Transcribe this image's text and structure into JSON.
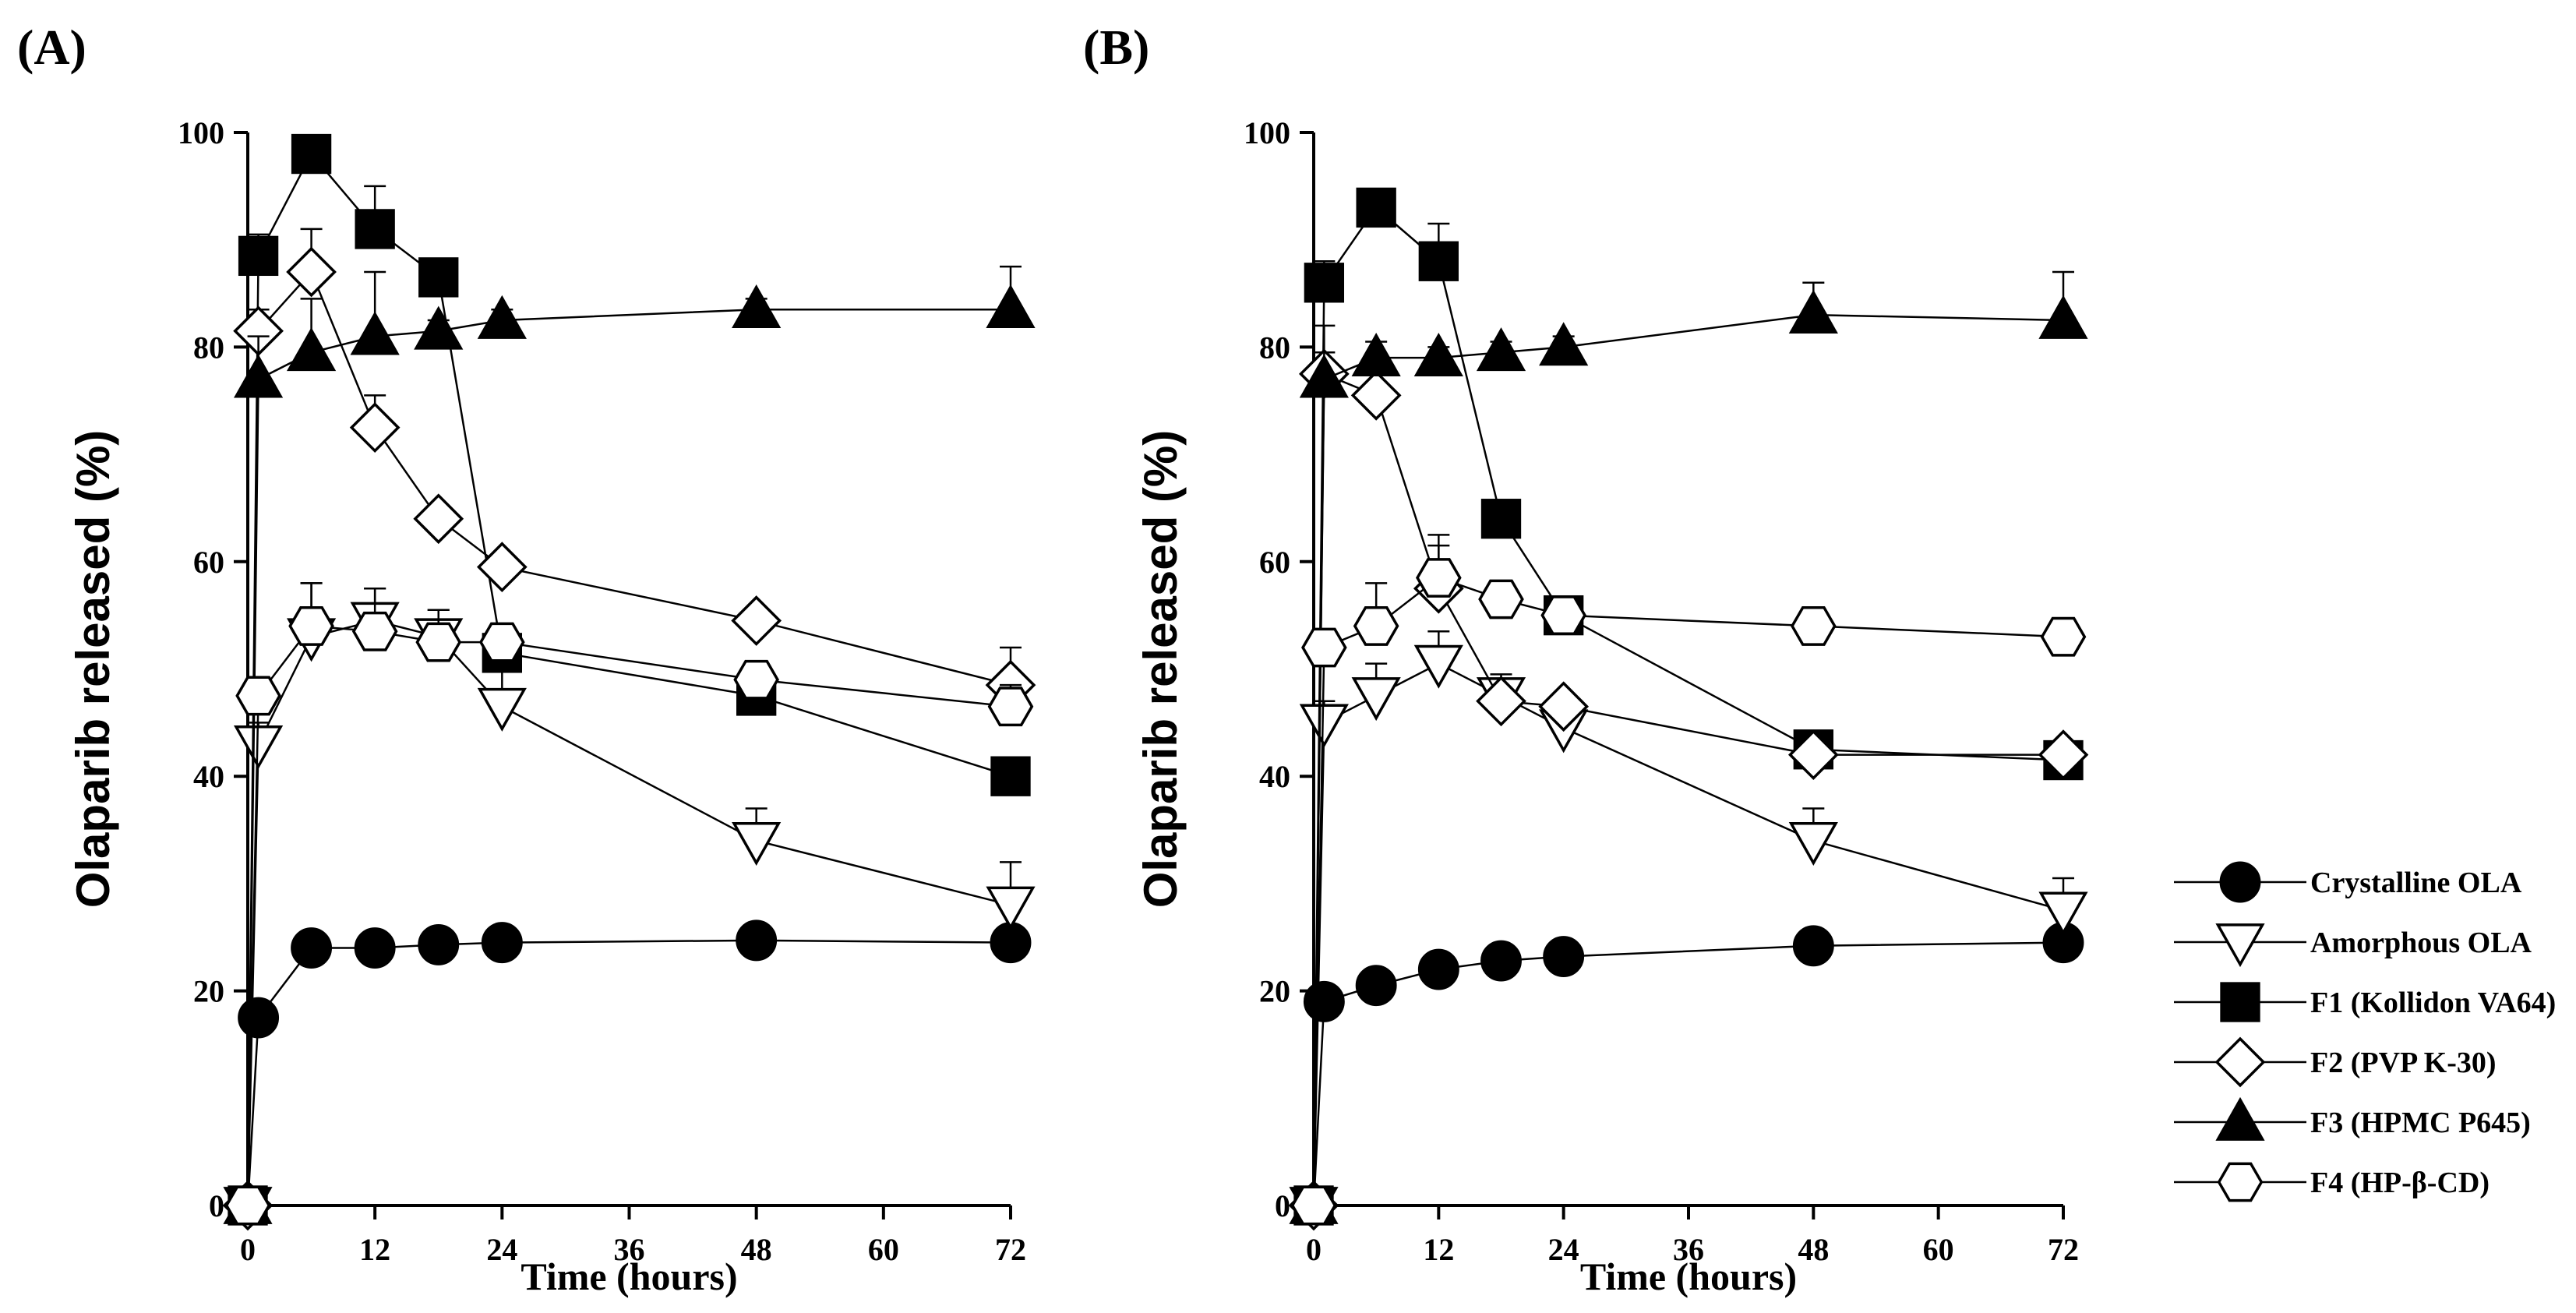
{
  "chart_data": [
    {
      "panel": "(A)",
      "type": "line",
      "xlabel": "Time (hours)",
      "ylabel": "Olaparib released (%)",
      "xlim": [
        0,
        72
      ],
      "ylim": [
        0,
        100
      ],
      "xticks": [
        0,
        12,
        24,
        36,
        48,
        60,
        72
      ],
      "yticks": [
        0,
        20,
        40,
        60,
        80,
        100
      ],
      "series": [
        {
          "name": "Crystalline OLA",
          "marker": "circle",
          "fill": "#000000",
          "x": [
            0,
            1,
            6,
            12,
            18,
            24,
            48,
            72
          ],
          "y": [
            0,
            17.5,
            24,
            24,
            24.3,
            24.5,
            24.7,
            24.5
          ],
          "err": [
            0,
            1,
            1,
            1,
            0.8,
            0.8,
            0.8,
            1
          ]
        },
        {
          "name": "Amorphous OLA",
          "marker": "triangle-down",
          "fill": "#ffffff",
          "x": [
            0,
            1,
            6,
            12,
            18,
            24,
            48,
            72
          ],
          "y": [
            0,
            43,
            53,
            54.5,
            53,
            46.5,
            34,
            28
          ],
          "err": [
            0,
            2,
            5,
            3,
            2.5,
            4,
            3,
            4
          ]
        },
        {
          "name": "F1 (Kollidon VA64)",
          "marker": "square",
          "fill": "#000000",
          "x": [
            0,
            1,
            6,
            12,
            18,
            24,
            48,
            72
          ],
          "y": [
            0,
            88.5,
            98,
            91,
            86.5,
            51.5,
            47.5,
            40
          ],
          "err": [
            0,
            2,
            1.5,
            4,
            1,
            1,
            1,
            1
          ]
        },
        {
          "name": "F2 (PVP K-30)",
          "marker": "diamond",
          "fill": "#ffffff",
          "x": [
            0,
            1,
            6,
            12,
            18,
            24,
            48,
            72
          ],
          "y": [
            0,
            81.5,
            87,
            72.5,
            64,
            59.5,
            54.5,
            48.5
          ],
          "err": [
            0,
            2,
            4,
            3,
            1,
            1,
            1,
            3.5
          ]
        },
        {
          "name": "F3 (HPMC P645)",
          "marker": "triangle-up",
          "fill": "#000000",
          "x": [
            0,
            1,
            6,
            12,
            18,
            24,
            48,
            72
          ],
          "y": [
            0,
            77,
            79.5,
            81,
            81.5,
            82.5,
            83.5,
            83.5
          ],
          "err": [
            0,
            4,
            5,
            6,
            1,
            1,
            1,
            4
          ]
        },
        {
          "name": "F4 (HP-β-CD)",
          "marker": "hexagon",
          "fill": "#ffffff",
          "x": [
            0,
            1,
            6,
            12,
            18,
            24,
            48,
            72
          ],
          "y": [
            0,
            47.5,
            54,
            53.5,
            52.5,
            52.5,
            49,
            46.5
          ],
          "err": [
            0,
            1.5,
            4,
            4,
            3,
            1.5,
            1.5,
            2
          ]
        }
      ]
    },
    {
      "panel": "(B)",
      "type": "line",
      "xlabel": "Time (hours)",
      "ylabel": "Olaparib released (%)",
      "xlim": [
        0,
        72
      ],
      "ylim": [
        0,
        100
      ],
      "xticks": [
        0,
        12,
        24,
        36,
        48,
        60,
        72
      ],
      "yticks": [
        0,
        20,
        40,
        60,
        80,
        100
      ],
      "series": [
        {
          "name": "Crystalline OLA",
          "marker": "circle",
          "fill": "#000000",
          "x": [
            0,
            1,
            6,
            12,
            18,
            24,
            48,
            72
          ],
          "y": [
            0,
            19,
            20.5,
            22,
            22.8,
            23.2,
            24.2,
            24.5
          ],
          "err": [
            0,
            1,
            1,
            1,
            0.8,
            0.8,
            0.8,
            1
          ]
        },
        {
          "name": "Amorphous OLA",
          "marker": "triangle-down",
          "fill": "#ffffff",
          "x": [
            0,
            1,
            6,
            12,
            18,
            24,
            48,
            72
          ],
          "y": [
            0,
            45,
            47.5,
            50.5,
            47.5,
            44.5,
            34,
            27.5
          ],
          "err": [
            0,
            2,
            3,
            3,
            2,
            1.5,
            3,
            3
          ]
        },
        {
          "name": "F1 (Kollidon VA64)",
          "marker": "square",
          "fill": "#000000",
          "x": [
            0,
            1,
            6,
            12,
            18,
            24,
            48,
            72
          ],
          "y": [
            0,
            86,
            93,
            88,
            64,
            55,
            42.5,
            41.5
          ],
          "err": [
            0,
            2,
            1.5,
            3.5,
            1,
            1,
            1,
            1
          ]
        },
        {
          "name": "F2 (PVP K-30)",
          "marker": "diamond",
          "fill": "#ffffff",
          "x": [
            0,
            1,
            6,
            12,
            18,
            24,
            48,
            72
          ],
          "y": [
            0,
            77.5,
            75.5,
            57.5,
            47,
            46.5,
            42,
            42
          ],
          "err": [
            0,
            2,
            2,
            4,
            1,
            1,
            1,
            1
          ]
        },
        {
          "name": "F3 (HPMC P645)",
          "marker": "triangle-up",
          "fill": "#000000",
          "x": [
            0,
            1,
            6,
            12,
            18,
            24,
            48,
            72
          ],
          "y": [
            0,
            77,
            79,
            79,
            79.5,
            80,
            83,
            82.5
          ],
          "err": [
            0,
            5,
            1.5,
            1,
            1,
            1,
            3,
            4.5
          ]
        },
        {
          "name": "F4 (HP-β-CD)",
          "marker": "hexagon",
          "fill": "#ffffff",
          "x": [
            0,
            1,
            6,
            12,
            18,
            24,
            48,
            72
          ],
          "y": [
            0,
            52,
            54,
            58.5,
            56.5,
            55,
            54,
            53
          ],
          "err": [
            0,
            1.5,
            4,
            4,
            1.5,
            1.5,
            1,
            1
          ]
        }
      ]
    }
  ],
  "legend": {
    "placement": "right",
    "entries": [
      {
        "label": "Crystalline OLA",
        "marker": "circle",
        "fill": "#000000"
      },
      {
        "label": "Amorphous OLA",
        "marker": "triangle-down",
        "fill": "#ffffff"
      },
      {
        "label": "F1 (Kollidon VA64)",
        "marker": "square",
        "fill": "#000000"
      },
      {
        "label": "F2 (PVP K-30)",
        "marker": "diamond",
        "fill": "#ffffff"
      },
      {
        "label": "F3 (HPMC P645)",
        "marker": "triangle-up",
        "fill": "#000000"
      },
      {
        "label": "F4 (HP-β-CD)",
        "marker": "hexagon",
        "fill": "#ffffff"
      }
    ]
  }
}
